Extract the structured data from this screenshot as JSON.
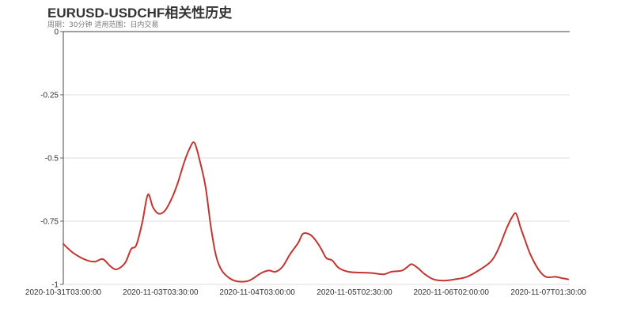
{
  "header": {
    "title": "EURUSD-USDCHF相关性历史",
    "subtitle": "周期：30分钟 适用范围：日内交易"
  },
  "colors": {
    "line": "#c23531",
    "axis": "#666666",
    "grid": "#dddddd",
    "text": "#333333"
  },
  "chart_data": {
    "type": "line",
    "title": "EURUSD-USDCHF相关性历史",
    "subtitle": "周期：30分钟 适用范围：日内交易",
    "xlabel": "",
    "ylabel": "",
    "ylim": [
      -1,
      0
    ],
    "yticks": [
      0,
      -0.25,
      -0.5,
      -0.75,
      -1
    ],
    "ytick_labels": [
      "0",
      "-0.25",
      "-0.5",
      "-0.75",
      "-1"
    ],
    "xtick_labels": [
      "2020-10-31T03:00:00",
      "2020-11-03T03:30:00",
      "2020-11-04T03:00:00",
      "2020-11-05T02:30:00",
      "2020-11-06T02:00:00",
      "2020-11-07T01:30:00"
    ],
    "xtick_positions": [
      0,
      0.192,
      0.383,
      0.575,
      0.766,
      0.958
    ],
    "grid": true,
    "legend": null,
    "series": [
      {
        "name": "EURUSD-USDCHF",
        "x": [
          0,
          0.016,
          0.031,
          0.047,
          0.063,
          0.078,
          0.094,
          0.106,
          0.122,
          0.134,
          0.144,
          0.156,
          0.167,
          0.177,
          0.188,
          0.2,
          0.213,
          0.225,
          0.239,
          0.25,
          0.259,
          0.27,
          0.281,
          0.292,
          0.302,
          0.313,
          0.328,
          0.344,
          0.367,
          0.391,
          0.406,
          0.419,
          0.433,
          0.448,
          0.464,
          0.473,
          0.484,
          0.494,
          0.508,
          0.519,
          0.531,
          0.544,
          0.563,
          0.586,
          0.609,
          0.633,
          0.648,
          0.669,
          0.68,
          0.688,
          0.7,
          0.714,
          0.731,
          0.75,
          0.773,
          0.797,
          0.82,
          0.844,
          0.859,
          0.875,
          0.886,
          0.894,
          0.903,
          0.911,
          0.922,
          0.938,
          0.953,
          0.972,
          0.984,
          0.997
        ],
        "values": [
          -0.84,
          -0.87,
          -0.89,
          -0.905,
          -0.91,
          -0.9,
          -0.93,
          -0.94,
          -0.915,
          -0.86,
          -0.845,
          -0.755,
          -0.645,
          -0.695,
          -0.72,
          -0.71,
          -0.665,
          -0.605,
          -0.515,
          -0.46,
          -0.44,
          -0.515,
          -0.615,
          -0.78,
          -0.89,
          -0.945,
          -0.975,
          -0.988,
          -0.985,
          -0.955,
          -0.945,
          -0.95,
          -0.93,
          -0.88,
          -0.835,
          -0.8,
          -0.8,
          -0.815,
          -0.855,
          -0.895,
          -0.905,
          -0.935,
          -0.95,
          -0.953,
          -0.955,
          -0.96,
          -0.95,
          -0.945,
          -0.93,
          -0.92,
          -0.935,
          -0.96,
          -0.98,
          -0.985,
          -0.98,
          -0.97,
          -0.945,
          -0.91,
          -0.86,
          -0.78,
          -0.735,
          -0.72,
          -0.775,
          -0.82,
          -0.88,
          -0.94,
          -0.97,
          -0.97,
          -0.975,
          -0.98
        ]
      }
    ]
  }
}
